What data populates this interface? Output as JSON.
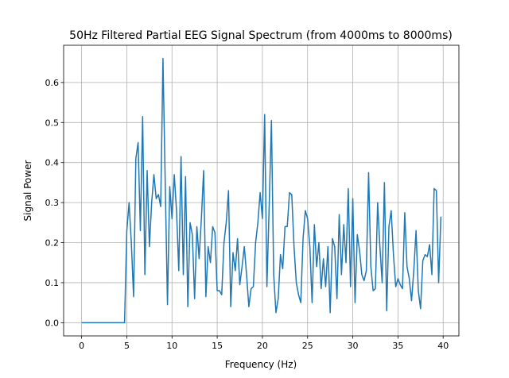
{
  "chart_data": {
    "type": "line",
    "title": "50Hz Filtered Partial EEG Signal Spectrum (from 4000ms to 8000ms)",
    "x_label": "Frequency (Hz)",
    "y_label": "Signal Power",
    "x": [
      0,
      0.25,
      0.5,
      0.75,
      1,
      1.25,
      1.5,
      1.75,
      2,
      2.25,
      2.5,
      2.75,
      3,
      3.25,
      3.5,
      3.75,
      4,
      4.25,
      4.5,
      4.75,
      5,
      5.25,
      5.5,
      5.75,
      6,
      6.25,
      6.5,
      6.75,
      7,
      7.25,
      7.5,
      7.75,
      8,
      8.25,
      8.5,
      8.75,
      9,
      9.25,
      9.5,
      9.75,
      10,
      10.25,
      10.5,
      10.75,
      11,
      11.25,
      11.5,
      11.75,
      12,
      12.25,
      12.5,
      12.75,
      13,
      13.25,
      13.5,
      13.75,
      14,
      14.25,
      14.5,
      14.75,
      15,
      15.25,
      15.5,
      15.75,
      16,
      16.25,
      16.5,
      16.75,
      17,
      17.25,
      17.5,
      17.75,
      18,
      18.25,
      18.5,
      18.75,
      19,
      19.25,
      19.5,
      19.75,
      20,
      20.25,
      20.5,
      20.75,
      21,
      21.25,
      21.5,
      21.75,
      22,
      22.25,
      22.5,
      22.75,
      23,
      23.25,
      23.5,
      23.75,
      24,
      24.25,
      24.5,
      24.75,
      25,
      25.25,
      25.5,
      25.75,
      26,
      26.25,
      26.5,
      26.75,
      27,
      27.25,
      27.5,
      27.75,
      28,
      28.25,
      28.5,
      28.75,
      29,
      29.25,
      29.5,
      29.75,
      30,
      30.25,
      30.5,
      30.75,
      31,
      31.25,
      31.5,
      31.75,
      32,
      32.25,
      32.5,
      32.75,
      33,
      33.25,
      33.5,
      33.75,
      34,
      34.25,
      34.5,
      34.75,
      35,
      35.25,
      35.5,
      35.75,
      36,
      36.25,
      36.5,
      36.75,
      37,
      37.25,
      37.5,
      37.75,
      38,
      38.25,
      38.5,
      38.75,
      39,
      39.25,
      39.5,
      39.75
    ],
    "series": [
      {
        "name": "Signal Power",
        "color": "#1f77b4",
        "values": [
          0,
          0,
          0,
          0,
          0,
          0,
          0,
          0,
          0,
          0,
          0,
          0,
          0,
          0,
          0,
          0,
          0,
          0,
          0,
          0,
          0.23,
          0.3,
          0.2,
          0.065,
          0.41,
          0.45,
          0.23,
          0.515,
          0.12,
          0.38,
          0.19,
          0.3,
          0.37,
          0.31,
          0.32,
          0.29,
          0.66,
          0.35,
          0.045,
          0.34,
          0.26,
          0.37,
          0.28,
          0.13,
          0.415,
          0.12,
          0.365,
          0.04,
          0.25,
          0.22,
          0.06,
          0.24,
          0.16,
          0.26,
          0.38,
          0.065,
          0.19,
          0.15,
          0.24,
          0.225,
          0.08,
          0.08,
          0.07,
          0.2,
          0.25,
          0.33,
          0.04,
          0.175,
          0.13,
          0.21,
          0.095,
          0.14,
          0.19,
          0.12,
          0.04,
          0.085,
          0.09,
          0.2,
          0.25,
          0.325,
          0.26,
          0.52,
          0.09,
          0.29,
          0.505,
          0.12,
          0.025,
          0.06,
          0.17,
          0.135,
          0.24,
          0.24,
          0.325,
          0.32,
          0.19,
          0.1,
          0.07,
          0.05,
          0.21,
          0.28,
          0.26,
          0.19,
          0.05,
          0.245,
          0.14,
          0.2,
          0.085,
          0.16,
          0.09,
          0.19,
          0.025,
          0.21,
          0.19,
          0.06,
          0.27,
          0.12,
          0.245,
          0.15,
          0.335,
          0.09,
          0.31,
          0.05,
          0.22,
          0.18,
          0.12,
          0.105,
          0.13,
          0.375,
          0.14,
          0.08,
          0.085,
          0.3,
          0.19,
          0.1,
          0.35,
          0.03,
          0.24,
          0.28,
          0.17,
          0.09,
          0.11,
          0.095,
          0.085,
          0.275,
          0.14,
          0.11,
          0.055,
          0.13,
          0.23,
          0.08,
          0.035,
          0.155,
          0.17,
          0.165,
          0.195,
          0.12,
          0.335,
          0.33,
          0.1,
          0.265
        ]
      }
    ],
    "xlim": [
      -1.99,
      41.74
    ],
    "ylim": [
      -0.033,
      0.693
    ],
    "xticks": [
      0,
      5,
      10,
      15,
      20,
      25,
      30,
      35,
      40
    ],
    "yticks": [
      {
        "value": 0,
        "label": "0.0"
      },
      0.1,
      0.2,
      0.3,
      0.4,
      0.5,
      0.6
    ],
    "grid": true
  }
}
